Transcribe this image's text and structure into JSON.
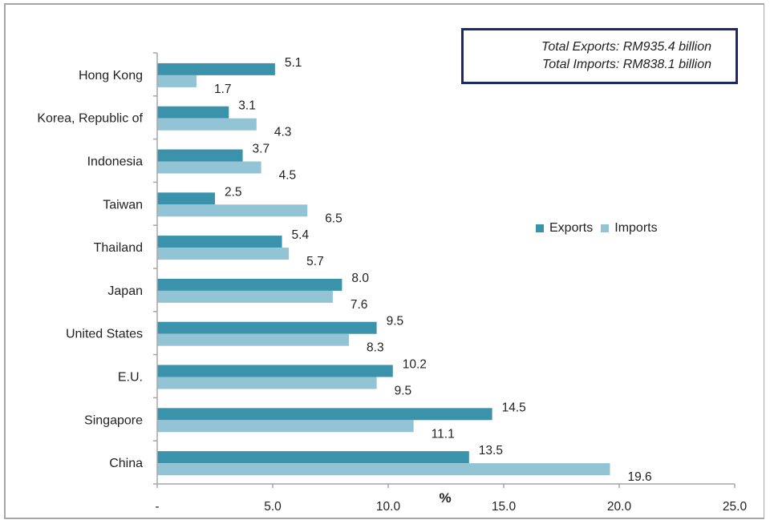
{
  "colors": {
    "exports": "#3a93ab",
    "imports": "#93c4d6",
    "totals_border": "#1b2a6b"
  },
  "totals": {
    "exports": "Total Exports: RM935.4 billion",
    "imports": "Total Imports: RM838.1 billion"
  },
  "legend": {
    "exports": "Exports",
    "imports": "Imports"
  },
  "chart_data": {
    "type": "bar",
    "orientation": "horizontal",
    "title": "",
    "xlabel": "%",
    "ylabel": "",
    "xlim": [
      0,
      25
    ],
    "x_ticks": [
      0,
      5,
      10,
      15,
      20,
      25
    ],
    "x_tick_labels": [
      "-",
      "5.0",
      "10.0",
      "15.0",
      "20.0",
      "25.0"
    ],
    "grid": false,
    "legend_position": "right-middle",
    "categories": [
      "Hong Kong",
      "Korea, Republic of",
      "Indonesia",
      "Taiwan",
      "Thailand",
      "Japan",
      "United States",
      "E.U.",
      "Singapore",
      "China"
    ],
    "series": [
      {
        "name": "Exports",
        "values": [
          5.1,
          3.1,
          3.7,
          2.5,
          5.4,
          8.0,
          9.5,
          10.2,
          14.5,
          13.5
        ]
      },
      {
        "name": "Imports",
        "values": [
          1.7,
          4.3,
          4.5,
          6.5,
          5.7,
          7.6,
          8.3,
          9.5,
          11.1,
          19.6
        ]
      }
    ],
    "annotations": [
      "Total Exports: RM935.4 billion",
      "Total Imports: RM838.1 billion"
    ]
  }
}
